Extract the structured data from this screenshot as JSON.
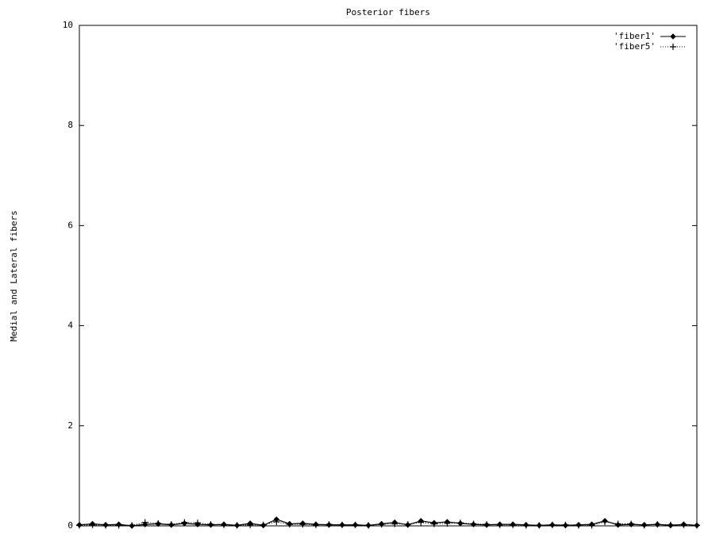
{
  "chart_data": {
    "type": "line",
    "title": "Posterior fibers",
    "y_label": "Medial and Lateral fibers",
    "categories": [
      null,
      null,
      null,
      null,
      null,
      null,
      null,
      null,
      null,
      null,
      null,
      null,
      null,
      null,
      null,
      null,
      null,
      null,
      null,
      null,
      null,
      null,
      null,
      null,
      null,
      null,
      null,
      null,
      null,
      null,
      null,
      null,
      null,
      null,
      null,
      null,
      null,
      null,
      null,
      null,
      null,
      null,
      null,
      null,
      null,
      null,
      null,
      null
    ],
    "series": [
      {
        "name": "'fiber1'",
        "color": "#000000",
        "line_style": "solid",
        "marker": "diamond",
        "values": [
          0.02,
          0.04,
          0.02,
          0.03,
          0,
          0.03,
          0.04,
          0.02,
          0.05,
          0.03,
          0.02,
          0.03,
          0.01,
          0.05,
          0.01,
          0.13,
          0.04,
          0.05,
          0.03,
          0.02,
          0.02,
          0.02,
          0.01,
          0.04,
          0.07,
          0.02,
          0.1,
          0.06,
          0.08,
          0.05,
          0.03,
          0.02,
          0.03,
          0.03,
          0.02,
          0.01,
          0.02,
          0.01,
          0.02,
          0.03,
          0.1,
          0.02,
          0.03,
          0.02,
          0.03,
          0.01,
          0.03,
          0.01
        ]
      },
      {
        "name": "'fiber5'",
        "color": "#000000",
        "line_style": "dotted",
        "marker": "plus",
        "values": [
          0.01,
          0.02,
          0.01,
          0.01,
          0.01,
          0.07,
          0.05,
          0.03,
          0.07,
          0.06,
          0.03,
          0.02,
          0.01,
          0.02,
          0.02,
          0.08,
          0.03,
          0.03,
          0.02,
          0.03,
          0.02,
          0.02,
          0.01,
          0.03,
          0.04,
          0.03,
          0.07,
          0.04,
          0.05,
          0.06,
          0.04,
          0.03,
          0.02,
          0.02,
          0.01,
          0.01,
          0.02,
          0.02,
          0.01,
          0.01,
          0.08,
          0.04,
          0.04,
          0.01,
          0.03,
          0.02,
          0.02,
          0.01
        ]
      }
    ],
    "ylim": [
      0,
      10
    ],
    "yticks": [
      0,
      2,
      4,
      6,
      8,
      10
    ],
    "legend": "top-right",
    "grid": false
  }
}
